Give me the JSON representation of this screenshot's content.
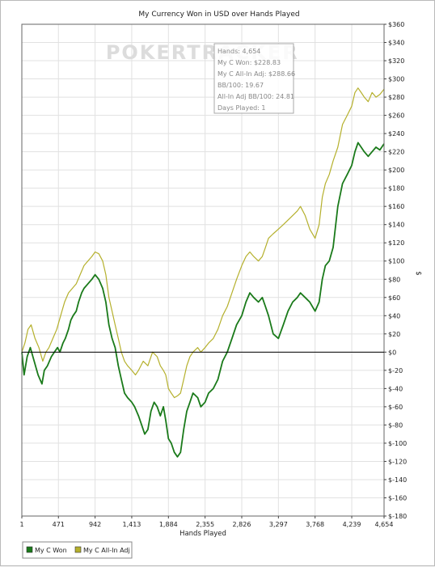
{
  "chart_data": {
    "type": "line",
    "title": "My Currency Won in USD over Hands Played",
    "xlabel": "Hands Played",
    "ylabel": "$",
    "xlim": [
      1,
      4654
    ],
    "ylim": [
      -180,
      360
    ],
    "x_ticks": [
      1,
      471,
      942,
      1413,
      1884,
      2355,
      2826,
      3297,
      3768,
      4239,
      4654
    ],
    "x_tick_labels": [
      "1",
      "471",
      "942",
      "1,413",
      "1,884",
      "2,355",
      "2,826",
      "3,297",
      "3,768",
      "4,239",
      "4,654"
    ],
    "y_ticks": [
      -180,
      -160,
      -140,
      -120,
      -100,
      -80,
      -60,
      -40,
      -20,
      0,
      20,
      40,
      60,
      80,
      100,
      120,
      140,
      160,
      180,
      200,
      220,
      240,
      260,
      280,
      300,
      320,
      340,
      360
    ],
    "y_tick_labels": [
      "$-180",
      "$-160",
      "$-140",
      "$-120",
      "$-100",
      "$-80",
      "$-60",
      "$-40",
      "$-20",
      "$0",
      "$20",
      "$40",
      "$60",
      "$80",
      "$100",
      "$120",
      "$140",
      "$160",
      "$180",
      "$200",
      "$220",
      "$240",
      "$260",
      "$280",
      "$300",
      "$320",
      "$340",
      "$360"
    ],
    "grid": true,
    "zero_line": true,
    "legend_position": "bottom-left",
    "series": [
      {
        "name": "My C Won",
        "color": "#1a7a1a",
        "points": [
          [
            1,
            0
          ],
          [
            30,
            -25
          ],
          [
            70,
            -5
          ],
          [
            110,
            5
          ],
          [
            160,
            -10
          ],
          [
            210,
            -25
          ],
          [
            260,
            -35
          ],
          [
            290,
            -20
          ],
          [
            330,
            -15
          ],
          [
            380,
            -5
          ],
          [
            420,
            0
          ],
          [
            460,
            5
          ],
          [
            490,
            0
          ],
          [
            530,
            10
          ],
          [
            560,
            15
          ],
          [
            600,
            25
          ],
          [
            630,
            35
          ],
          [
            660,
            40
          ],
          [
            700,
            45
          ],
          [
            730,
            55
          ],
          [
            770,
            65
          ],
          [
            800,
            70
          ],
          [
            850,
            75
          ],
          [
            900,
            80
          ],
          [
            942,
            85
          ],
          [
            990,
            80
          ],
          [
            1040,
            70
          ],
          [
            1080,
            55
          ],
          [
            1120,
            30
          ],
          [
            1160,
            15
          ],
          [
            1200,
            5
          ],
          [
            1240,
            -15
          ],
          [
            1280,
            -30
          ],
          [
            1320,
            -45
          ],
          [
            1360,
            -50
          ],
          [
            1413,
            -55
          ],
          [
            1450,
            -60
          ],
          [
            1500,
            -70
          ],
          [
            1540,
            -80
          ],
          [
            1580,
            -90
          ],
          [
            1620,
            -85
          ],
          [
            1660,
            -65
          ],
          [
            1700,
            -55
          ],
          [
            1740,
            -60
          ],
          [
            1780,
            -70
          ],
          [
            1820,
            -60
          ],
          [
            1850,
            -75
          ],
          [
            1884,
            -95
          ],
          [
            1920,
            -100
          ],
          [
            1960,
            -110
          ],
          [
            2000,
            -115
          ],
          [
            2040,
            -110
          ],
          [
            2080,
            -85
          ],
          [
            2120,
            -65
          ],
          [
            2160,
            -55
          ],
          [
            2200,
            -45
          ],
          [
            2260,
            -50
          ],
          [
            2300,
            -60
          ],
          [
            2355,
            -55
          ],
          [
            2400,
            -45
          ],
          [
            2460,
            -40
          ],
          [
            2520,
            -30
          ],
          [
            2580,
            -10
          ],
          [
            2640,
            0
          ],
          [
            2700,
            15
          ],
          [
            2760,
            30
          ],
          [
            2826,
            40
          ],
          [
            2880,
            55
          ],
          [
            2930,
            65
          ],
          [
            2980,
            60
          ],
          [
            3040,
            55
          ],
          [
            3090,
            60
          ],
          [
            3130,
            50
          ],
          [
            3170,
            40
          ],
          [
            3230,
            20
          ],
          [
            3297,
            15
          ],
          [
            3360,
            30
          ],
          [
            3420,
            45
          ],
          [
            3480,
            55
          ],
          [
            3540,
            60
          ],
          [
            3580,
            65
          ],
          [
            3640,
            60
          ],
          [
            3700,
            55
          ],
          [
            3768,
            45
          ],
          [
            3820,
            55
          ],
          [
            3860,
            80
          ],
          [
            3900,
            95
          ],
          [
            3950,
            100
          ],
          [
            4000,
            115
          ],
          [
            4060,
            160
          ],
          [
            4120,
            185
          ],
          [
            4180,
            195
          ],
          [
            4239,
            205
          ],
          [
            4280,
            220
          ],
          [
            4320,
            230
          ],
          [
            4360,
            225
          ],
          [
            4400,
            220
          ],
          [
            4450,
            215
          ],
          [
            4500,
            220
          ],
          [
            4550,
            225
          ],
          [
            4600,
            222
          ],
          [
            4654,
            228.83
          ]
        ]
      },
      {
        "name": "My C All-In Adj",
        "color": "#b5b02c",
        "points": [
          [
            1,
            0
          ],
          [
            40,
            10
          ],
          [
            80,
            25
          ],
          [
            120,
            30
          ],
          [
            170,
            15
          ],
          [
            220,
            5
          ],
          [
            270,
            -10
          ],
          [
            310,
            0
          ],
          [
            350,
            5
          ],
          [
            400,
            15
          ],
          [
            450,
            25
          ],
          [
            500,
            40
          ],
          [
            550,
            55
          ],
          [
            600,
            65
          ],
          [
            650,
            70
          ],
          [
            700,
            75
          ],
          [
            750,
            85
          ],
          [
            800,
            95
          ],
          [
            850,
            100
          ],
          [
            900,
            105
          ],
          [
            942,
            110
          ],
          [
            990,
            108
          ],
          [
            1040,
            100
          ],
          [
            1080,
            85
          ],
          [
            1120,
            60
          ],
          [
            1160,
            45
          ],
          [
            1200,
            30
          ],
          [
            1240,
            15
          ],
          [
            1280,
            0
          ],
          [
            1320,
            -10
          ],
          [
            1360,
            -15
          ],
          [
            1413,
            -20
          ],
          [
            1460,
            -25
          ],
          [
            1500,
            -20
          ],
          [
            1560,
            -10
          ],
          [
            1620,
            -15
          ],
          [
            1680,
            0
          ],
          [
            1740,
            -5
          ],
          [
            1780,
            -15
          ],
          [
            1820,
            -20
          ],
          [
            1850,
            -25
          ],
          [
            1884,
            -40
          ],
          [
            1920,
            -45
          ],
          [
            1960,
            -50
          ],
          [
            2000,
            -48
          ],
          [
            2040,
            -45
          ],
          [
            2080,
            -30
          ],
          [
            2120,
            -15
          ],
          [
            2160,
            -5
          ],
          [
            2200,
            0
          ],
          [
            2260,
            5
          ],
          [
            2300,
            0
          ],
          [
            2355,
            5
          ],
          [
            2400,
            10
          ],
          [
            2460,
            15
          ],
          [
            2520,
            25
          ],
          [
            2580,
            40
          ],
          [
            2640,
            50
          ],
          [
            2700,
            65
          ],
          [
            2760,
            80
          ],
          [
            2826,
            95
          ],
          [
            2880,
            105
          ],
          [
            2930,
            110
          ],
          [
            2980,
            105
          ],
          [
            3040,
            100
          ],
          [
            3090,
            105
          ],
          [
            3130,
            115
          ],
          [
            3170,
            125
          ],
          [
            3230,
            130
          ],
          [
            3297,
            135
          ],
          [
            3360,
            140
          ],
          [
            3420,
            145
          ],
          [
            3480,
            150
          ],
          [
            3540,
            155
          ],
          [
            3580,
            160
          ],
          [
            3640,
            150
          ],
          [
            3700,
            135
          ],
          [
            3768,
            125
          ],
          [
            3820,
            140
          ],
          [
            3860,
            170
          ],
          [
            3900,
            185
          ],
          [
            3950,
            195
          ],
          [
            4000,
            210
          ],
          [
            4060,
            225
          ],
          [
            4120,
            250
          ],
          [
            4180,
            260
          ],
          [
            4239,
            270
          ],
          [
            4280,
            285
          ],
          [
            4320,
            290
          ],
          [
            4360,
            285
          ],
          [
            4400,
            280
          ],
          [
            4450,
            275
          ],
          [
            4500,
            285
          ],
          [
            4550,
            280
          ],
          [
            4600,
            283
          ],
          [
            4654,
            288.66
          ]
        ]
      }
    ],
    "info_box": [
      "Hands: 4,654",
      "My C Won: $228.83",
      "My C All-In Adj: $288.66",
      "BB/100: 19.67",
      "All-In Adj BB/100: 24.81",
      "Days Played: 1"
    ],
    "watermark": "POKERTRACKER"
  }
}
